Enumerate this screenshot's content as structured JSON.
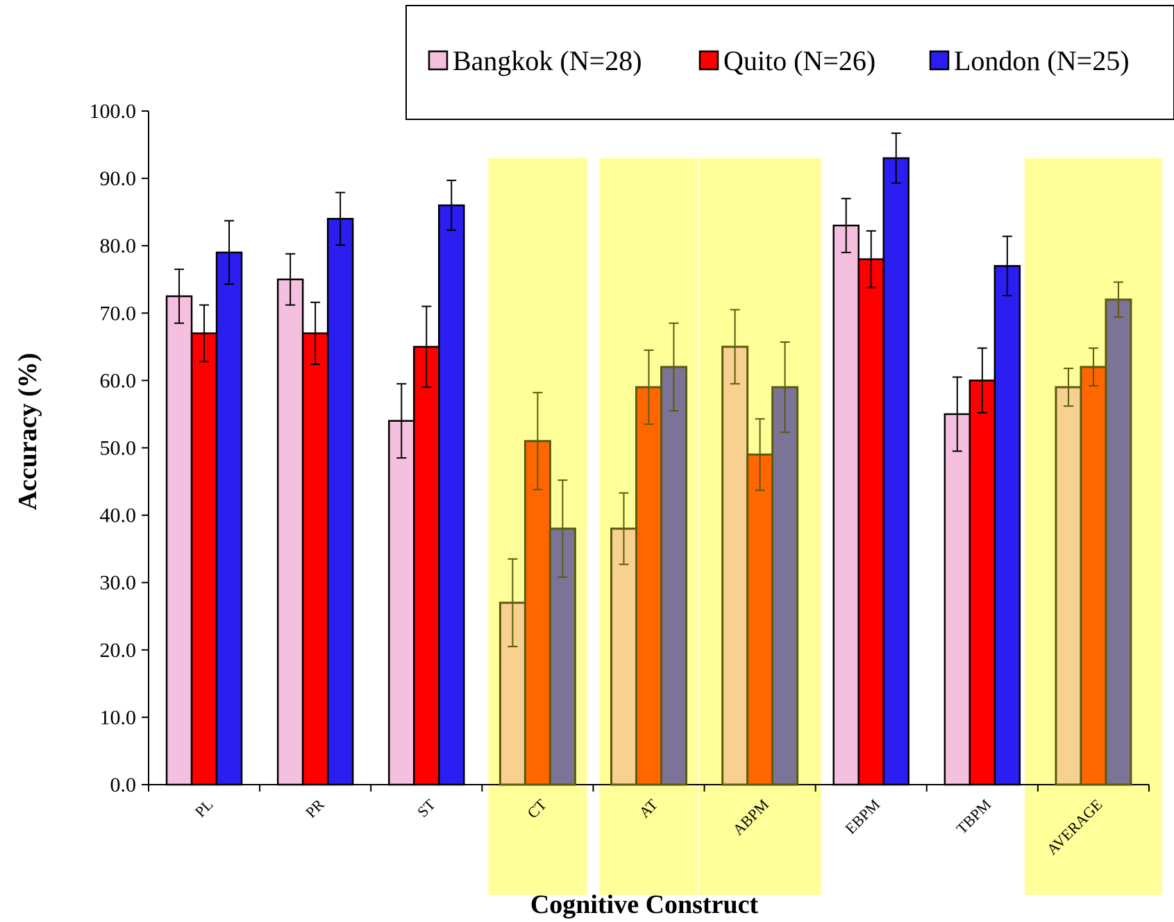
{
  "chart_data": {
    "type": "bar",
    "xlabel": "Cognitive Construct",
    "ylabel": "Accuracy (%)",
    "ylim": [
      0,
      100
    ],
    "yticks": [
      "0.0",
      "10.0",
      "20.0",
      "30.0",
      "40.0",
      "50.0",
      "60.0",
      "70.0",
      "80.0",
      "90.0",
      "100.0"
    ],
    "categories": [
      "PL",
      "PR",
      "ST",
      "CT",
      "AT",
      "ABPM",
      "EBPM",
      "TBPM",
      "AVERAGE"
    ],
    "highlighted_categories": [
      "CT",
      "AT",
      "ABPM",
      "AVERAGE"
    ],
    "series": [
      {
        "name": "Bangkok (N=28)",
        "values": [
          72.5,
          75.0,
          54.0,
          27.0,
          38.0,
          65.0,
          83.0,
          55.0,
          59.0
        ],
        "errors": [
          4.0,
          3.8,
          5.5,
          6.5,
          5.3,
          5.5,
          4.0,
          5.5,
          2.8
        ]
      },
      {
        "name": "Quito (N=26)",
        "values": [
          67.0,
          67.0,
          65.0,
          51.0,
          59.0,
          49.0,
          78.0,
          60.0,
          62.0
        ],
        "errors": [
          4.2,
          4.6,
          6.0,
          7.2,
          5.5,
          5.3,
          4.2,
          4.8,
          2.8
        ]
      },
      {
        "name": "London (N=25)",
        "values": [
          79.0,
          84.0,
          86.0,
          38.0,
          62.0,
          59.0,
          93.0,
          77.0,
          72.0
        ],
        "errors": [
          4.7,
          3.9,
          3.7,
          7.2,
          6.5,
          6.7,
          3.7,
          4.4,
          2.6
        ]
      }
    ],
    "colors": {
      "normal": [
        "#f5bfe0",
        "#ff0000",
        "#2a1ff0"
      ],
      "highlighted": [
        "#f8d08f",
        "#ff6600",
        "#7b7497"
      ],
      "highlight_band": "#ffff99",
      "highlight_outline": "#5a5a10"
    },
    "legend_position": "top-right"
  }
}
